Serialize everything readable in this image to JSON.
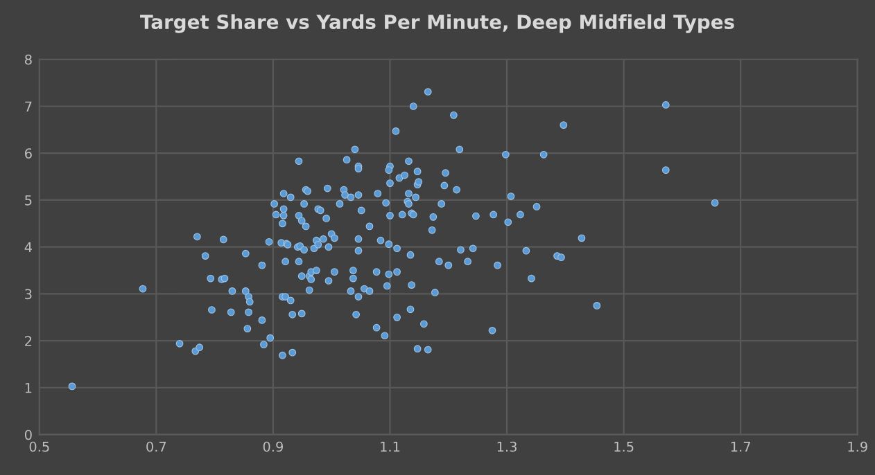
{
  "chart_data": {
    "type": "scatter",
    "title": "Target Share vs Yards Per Minute, Deep Midfield Types",
    "xlim": [
      0.5,
      1.9
    ],
    "xticks": [
      0.5,
      0.7,
      0.9,
      1.1,
      1.3,
      1.5,
      1.7,
      1.9
    ],
    "ylim": [
      0,
      8
    ],
    "yticks": [
      0,
      1,
      2,
      3,
      4,
      5,
      6,
      7,
      8
    ],
    "grid": true,
    "marker": "circle",
    "series": [
      {
        "color": "#5b9bd5",
        "x": [
          0.556,
          0.677,
          0.74,
          0.767,
          0.774,
          0.77,
          0.784,
          0.793,
          0.795,
          0.815,
          0.812,
          0.817,
          0.83,
          0.828,
          0.853,
          0.853,
          0.858,
          0.86,
          0.858,
          0.856,
          0.881,
          0.881,
          0.884,
          0.895,
          0.893,
          0.902,
          0.905,
          0.916,
          0.918,
          0.918,
          0.918,
          0.914,
          0.923,
          0.925,
          0.93,
          0.921,
          0.916,
          0.921,
          0.93,
          0.933,
          0.916,
          0.933,
          0.944,
          0.944,
          0.949,
          0.953,
          0.956,
          0.956,
          0.959,
          0.942,
          0.946,
          0.953,
          0.944,
          0.949,
          0.949,
          0.962,
          0.965,
          0.965,
          0.962,
          0.97,
          0.974,
          0.977,
          0.974,
          0.977,
          0.981,
          0.986,
          0.991,
          0.993,
          0.995,
          0.995,
          1.0,
          1.005,
          1.005,
          1.014,
          1.021,
          1.023,
          1.026,
          1.033,
          1.04,
          1.046,
          1.046,
          1.046,
          1.051,
          1.046,
          1.046,
          1.037,
          1.037,
          1.033,
          1.046,
          1.042,
          1.056,
          1.065,
          1.065,
          1.077,
          1.079,
          1.084,
          1.077,
          1.091,
          1.093,
          1.095,
          1.098,
          1.098,
          1.1,
          1.1,
          1.098,
          1.1,
          1.11,
          1.112,
          1.112,
          1.112,
          1.116,
          1.121,
          1.125,
          1.132,
          1.13,
          1.132,
          1.132,
          1.135,
          1.137,
          1.135,
          1.14,
          1.137,
          1.14,
          1.144,
          1.147,
          1.147,
          1.149,
          1.147,
          1.158,
          1.165,
          1.165,
          1.174,
          1.172,
          1.177,
          1.184,
          1.188,
          1.193,
          1.195,
          1.2,
          1.209,
          1.219,
          1.214,
          1.221,
          1.242,
          1.233,
          1.247,
          1.277,
          1.298,
          1.307,
          1.302,
          1.323,
          1.351,
          1.333,
          1.284,
          1.342,
          1.363,
          1.386,
          1.393,
          1.397,
          1.428,
          1.454,
          1.275,
          1.572,
          1.572,
          1.656
        ],
        "values": [
          1.03,
          3.11,
          1.94,
          1.78,
          1.86,
          4.22,
          3.81,
          3.33,
          2.66,
          4.16,
          3.31,
          3.33,
          3.06,
          2.61,
          3.86,
          3.06,
          2.94,
          2.83,
          2.61,
          2.26,
          3.61,
          2.44,
          1.92,
          2.06,
          4.11,
          4.92,
          4.69,
          4.5,
          5.14,
          4.81,
          4.67,
          4.09,
          4.07,
          4.05,
          5.06,
          3.69,
          2.94,
          2.94,
          2.86,
          2.56,
          1.69,
          1.75,
          5.83,
          4.67,
          4.56,
          4.92,
          4.44,
          5.22,
          5.19,
          4.0,
          4.02,
          3.94,
          3.69,
          3.38,
          2.58,
          3.38,
          3.47,
          3.31,
          3.08,
          3.97,
          4.14,
          4.05,
          3.5,
          4.81,
          4.78,
          4.17,
          4.61,
          5.25,
          4.0,
          3.28,
          4.28,
          4.19,
          3.47,
          4.92,
          5.22,
          5.11,
          5.86,
          5.06,
          6.08,
          5.72,
          5.67,
          5.11,
          4.78,
          4.17,
          3.92,
          3.5,
          3.33,
          3.06,
          2.94,
          2.56,
          3.11,
          3.06,
          4.44,
          3.47,
          5.14,
          4.14,
          2.28,
          2.11,
          4.94,
          3.17,
          3.42,
          4.06,
          4.67,
          5.72,
          5.64,
          5.36,
          6.47,
          3.97,
          3.47,
          2.5,
          5.47,
          4.69,
          5.53,
          5.83,
          4.97,
          4.92,
          5.14,
          3.83,
          3.19,
          2.67,
          7.0,
          4.72,
          4.69,
          5.06,
          5.61,
          5.33,
          5.39,
          1.83,
          2.36,
          7.31,
          1.81,
          4.64,
          4.36,
          3.03,
          3.69,
          4.92,
          5.31,
          5.58,
          3.61,
          6.81,
          6.08,
          5.22,
          3.94,
          3.97,
          3.69,
          4.66,
          4.69,
          5.97,
          5.08,
          4.53,
          4.69,
          4.86,
          3.92,
          3.61,
          3.33,
          5.97,
          3.81,
          3.78,
          6.6,
          4.19,
          2.75,
          2.22,
          7.03,
          5.64,
          4.94
        ]
      }
    ]
  }
}
